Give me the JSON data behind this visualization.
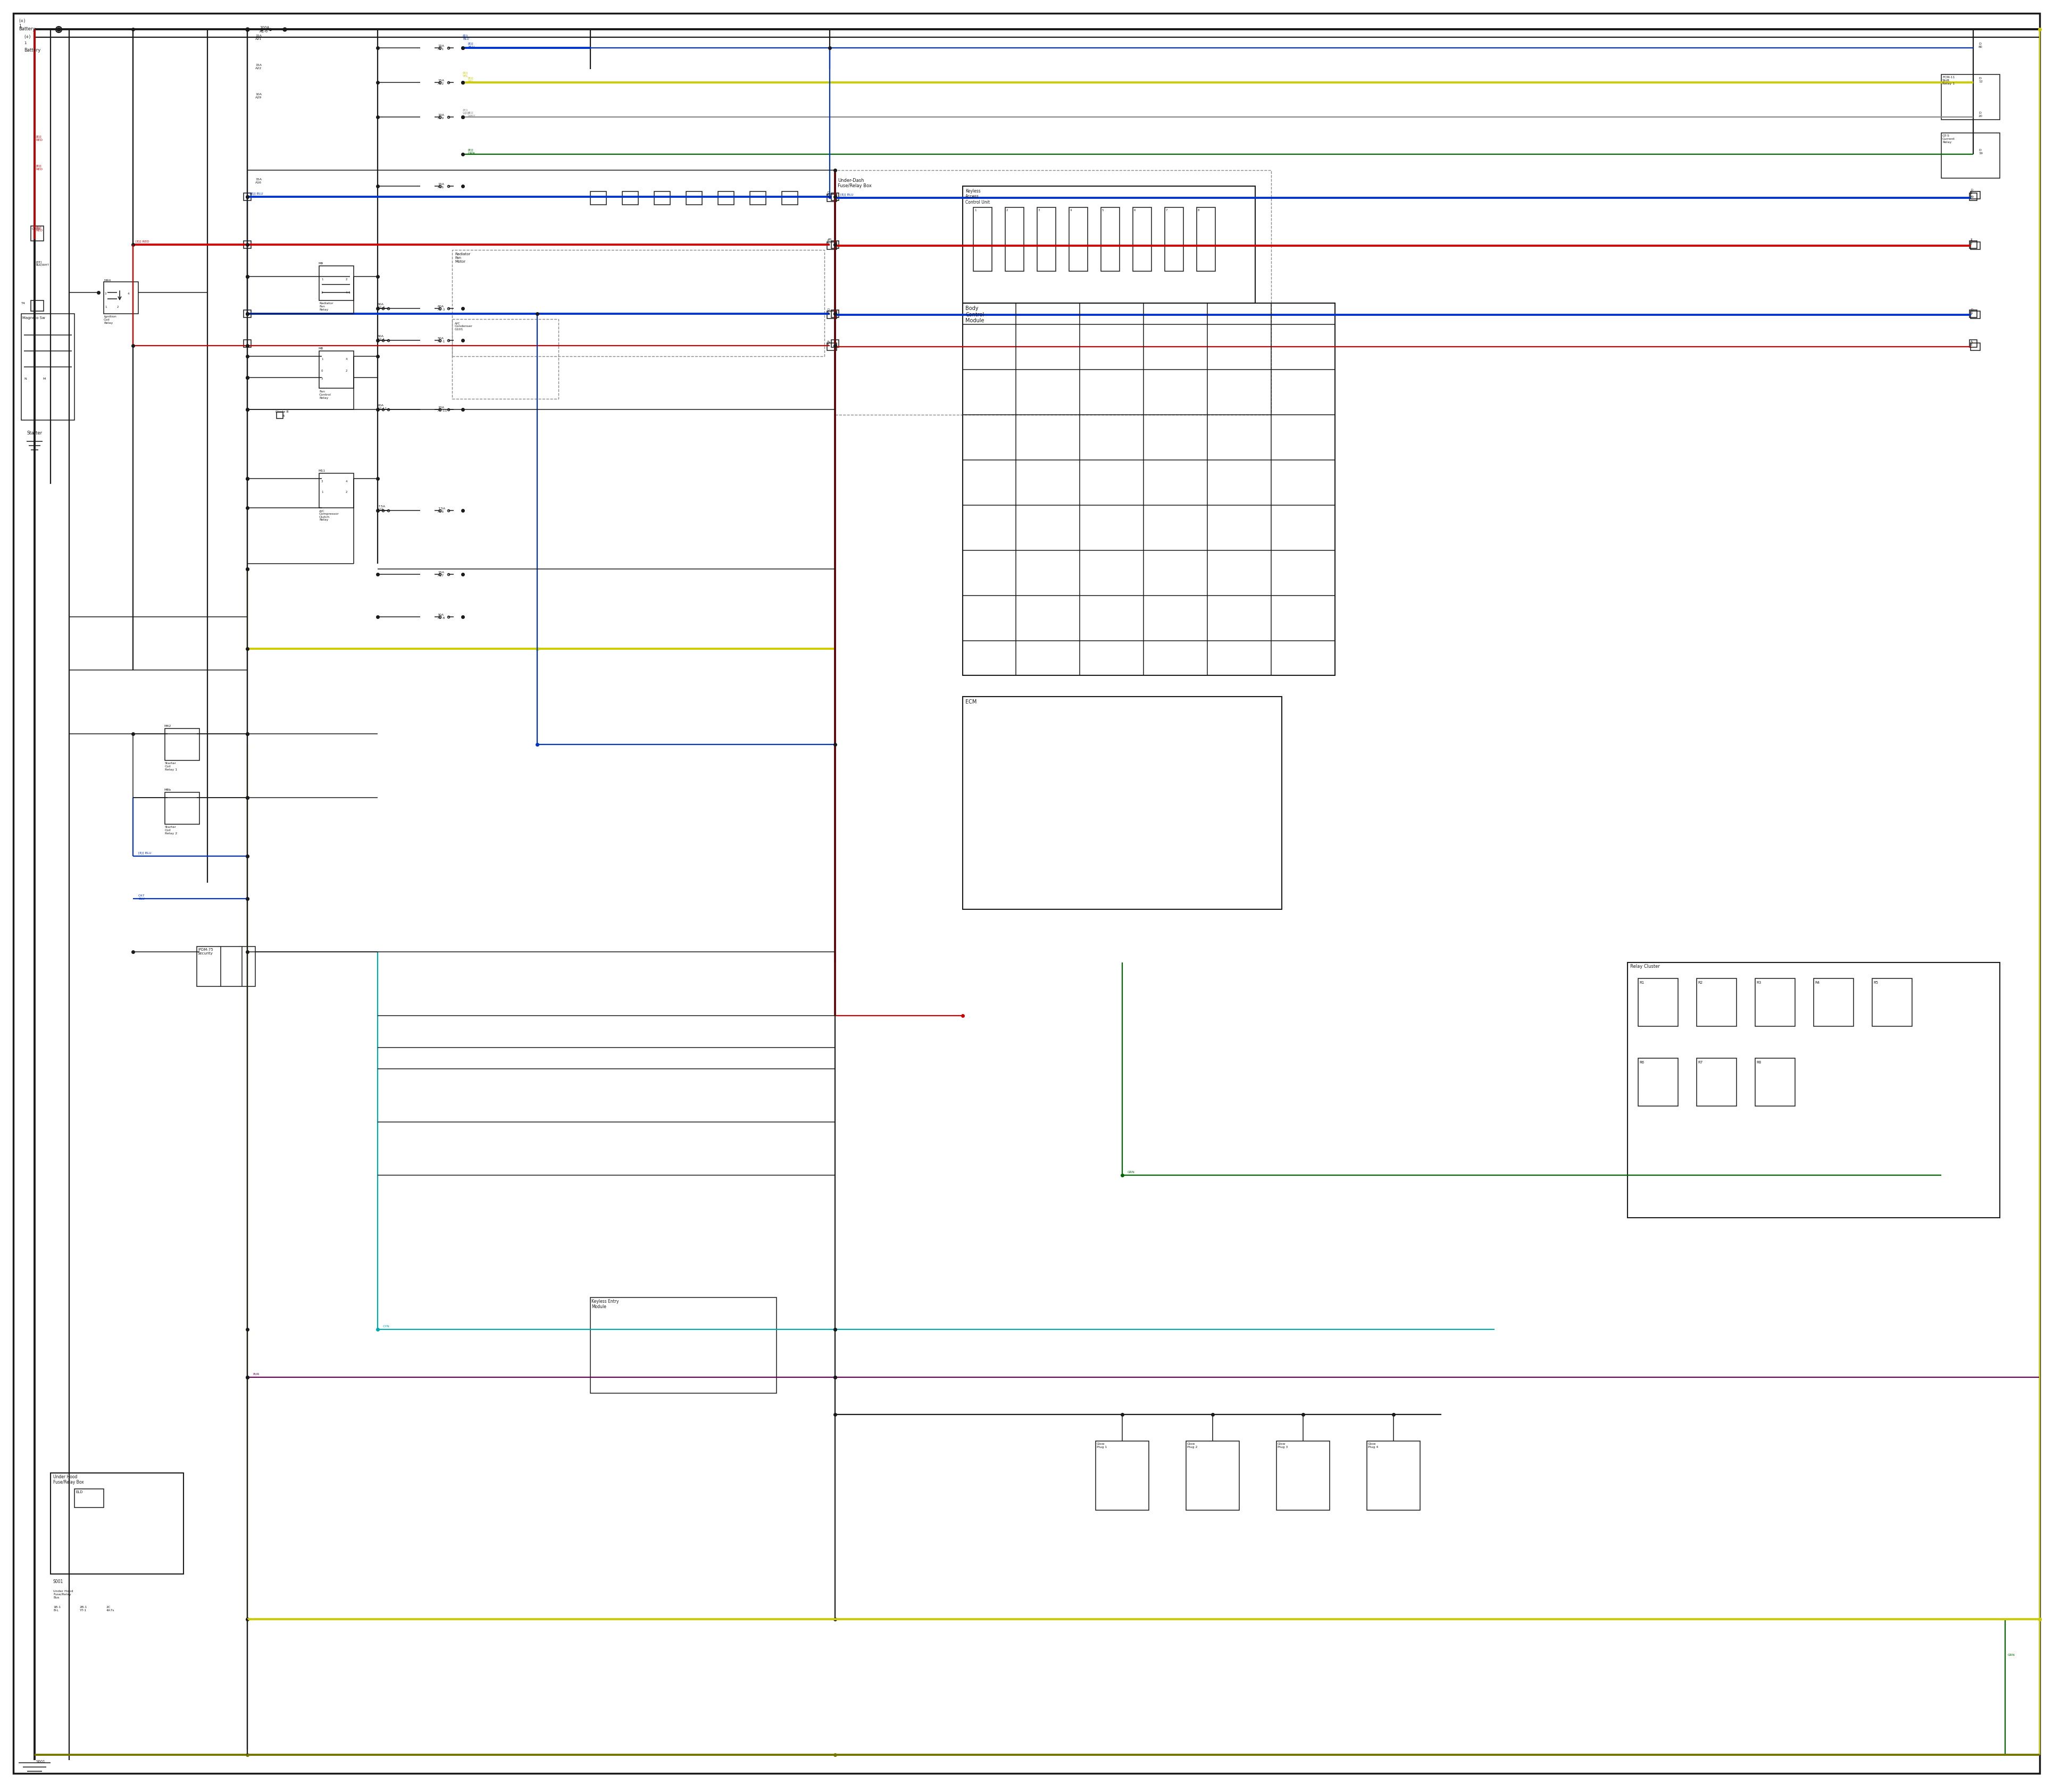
{
  "bg_color": "#ffffff",
  "fig_width": 38.4,
  "fig_height": 33.5,
  "colors": {
    "black": "#1a1a1a",
    "red": "#cc0000",
    "blue": "#0033cc",
    "yellow": "#cccc00",
    "green": "#006600",
    "cyan": "#00aaaa",
    "purple": "#660055",
    "gray": "#888888",
    "dark_yellow": "#777700",
    "light_gray": "#cccccc",
    "dark_green": "#004400"
  },
  "lw": 1.6,
  "tlw": 1.1,
  "thick": 2.8
}
